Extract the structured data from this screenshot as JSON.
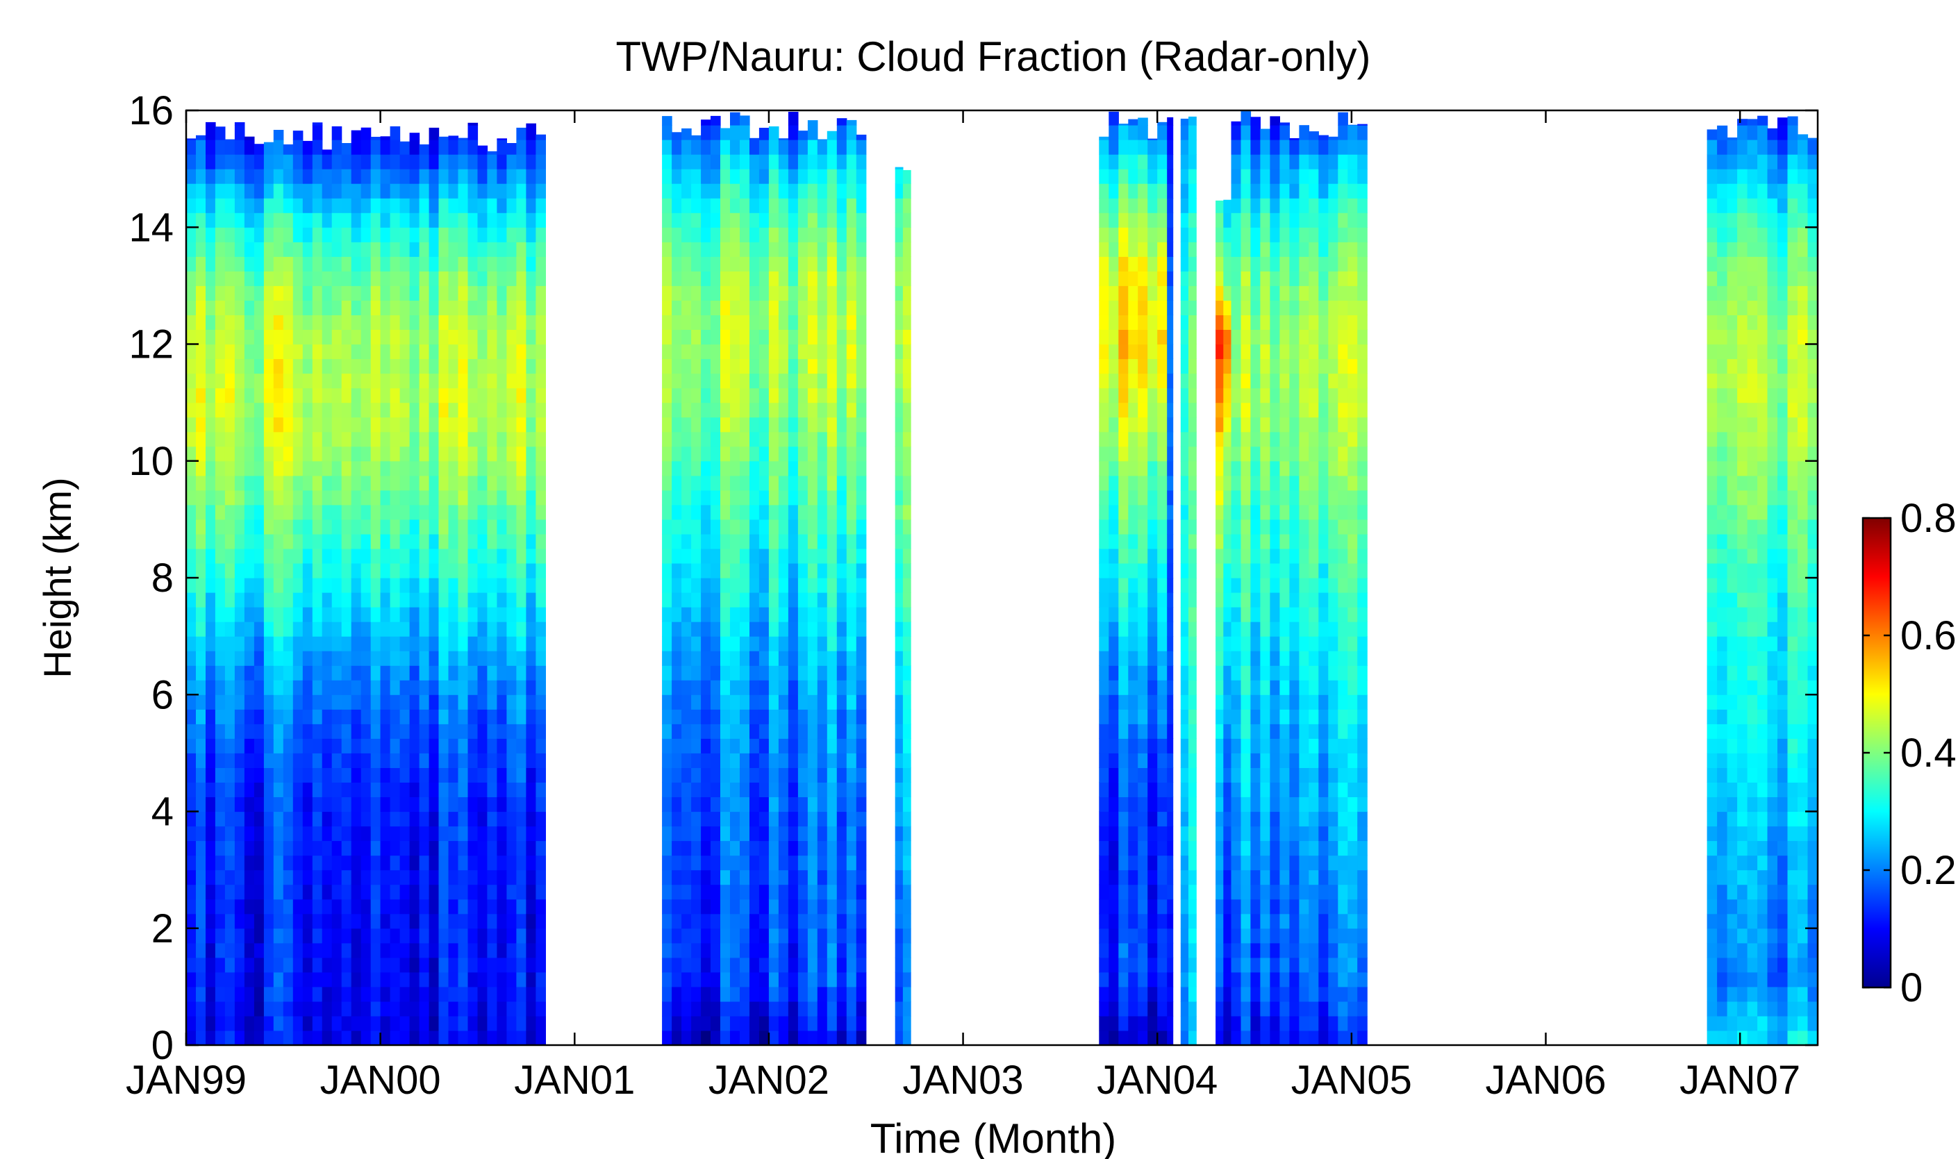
{
  "chart_data": {
    "type": "heatmap",
    "title": "TWP/Nauru: Cloud Fraction (Radar-only)",
    "xlabel": "Time (Month)",
    "ylabel": "Height (km)",
    "xlim": [
      1999.0,
      2007.4
    ],
    "ylim": [
      0,
      16
    ],
    "x_ticks": [
      {
        "value": 1999,
        "label": "JAN99"
      },
      {
        "value": 2000,
        "label": "JAN00"
      },
      {
        "value": 2001,
        "label": "JAN01"
      },
      {
        "value": 2002,
        "label": "JAN02"
      },
      {
        "value": 2003,
        "label": "JAN03"
      },
      {
        "value": 2004,
        "label": "JAN04"
      },
      {
        "value": 2005,
        "label": "JAN05"
      },
      {
        "value": 2006,
        "label": "JAN06"
      },
      {
        "value": 2007,
        "label": "JAN07"
      }
    ],
    "y_ticks": [
      0,
      2,
      4,
      6,
      8,
      10,
      12,
      14,
      16
    ],
    "colorbar": {
      "range": [
        0,
        0.8
      ],
      "ticks": [
        0,
        0.2,
        0.4,
        0.6,
        0.8
      ],
      "tick_labels": [
        "0",
        "0.2",
        "0.4",
        "0.6",
        "0.8"
      ],
      "colormap": "jet"
    },
    "grid": false,
    "data_periods": [
      {
        "start": 1999.0,
        "end": 2000.85,
        "top_km": 15.8,
        "profile": [
          0.1,
          0.12,
          0.12,
          0.13,
          0.14,
          0.17,
          0.21,
          0.27,
          0.33,
          0.38,
          0.44,
          0.46,
          0.45,
          0.4,
          0.31,
          0.18,
          0.08
        ]
      },
      {
        "start": 2001.45,
        "end": 2002.5,
        "top_km": 16.0,
        "profile": [
          0.08,
          0.15,
          0.16,
          0.17,
          0.18,
          0.2,
          0.22,
          0.26,
          0.3,
          0.34,
          0.38,
          0.42,
          0.44,
          0.42,
          0.36,
          0.26,
          0.12
        ]
      },
      {
        "start": 2002.65,
        "end": 2002.73,
        "top_km": 15.2,
        "profile": [
          0.2,
          0.2,
          0.22,
          0.24,
          0.26,
          0.28,
          0.3,
          0.34,
          0.36,
          0.4,
          0.42,
          0.44,
          0.46,
          0.44,
          0.4,
          0.3,
          0.2
        ]
      },
      {
        "start": 2003.7,
        "end": 2004.05,
        "top_km": 16.0,
        "profile": [
          0.05,
          0.15,
          0.14,
          0.14,
          0.15,
          0.18,
          0.22,
          0.27,
          0.31,
          0.36,
          0.42,
          0.48,
          0.52,
          0.5,
          0.42,
          0.3,
          0.14
        ]
      },
      {
        "start": 2004.05,
        "end": 2004.08,
        "top_km": 16.0,
        "profile": [
          0.06,
          0.08,
          0.09,
          0.1,
          0.1,
          0.11,
          0.12,
          0.13,
          0.14,
          0.15,
          0.15,
          0.15,
          0.15,
          0.14,
          0.12,
          0.1,
          0.06
        ]
      },
      {
        "start": 2004.12,
        "end": 2004.2,
        "top_km": 16.0,
        "profile": [
          0.22,
          0.24,
          0.26,
          0.27,
          0.28,
          0.3,
          0.31,
          0.32,
          0.33,
          0.34,
          0.36,
          0.37,
          0.36,
          0.34,
          0.3,
          0.25,
          0.2
        ]
      },
      {
        "start": 2004.3,
        "end": 2004.38,
        "top_km": 14.8,
        "profile": [
          0.05,
          0.12,
          0.14,
          0.16,
          0.18,
          0.22,
          0.26,
          0.3,
          0.34,
          0.4,
          0.46,
          0.55,
          0.62,
          0.4,
          0.3,
          0.2,
          0.1
        ]
      },
      {
        "start": 2004.38,
        "end": 2005.08,
        "top_km": 16.0,
        "profile": [
          0.12,
          0.18,
          0.2,
          0.22,
          0.24,
          0.26,
          0.28,
          0.31,
          0.34,
          0.37,
          0.41,
          0.44,
          0.44,
          0.4,
          0.34,
          0.24,
          0.1
        ]
      },
      {
        "start": 2006.83,
        "end": 2007.4,
        "top_km": 16.0,
        "profile": [
          0.28,
          0.2,
          0.22,
          0.24,
          0.26,
          0.29,
          0.3,
          0.32,
          0.34,
          0.38,
          0.41,
          0.44,
          0.44,
          0.4,
          0.34,
          0.24,
          0.12
        ]
      }
    ]
  }
}
